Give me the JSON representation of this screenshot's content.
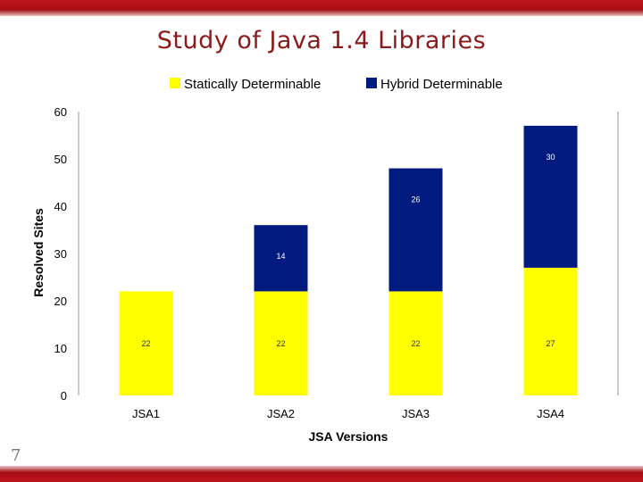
{
  "slide": {
    "title": "Study of Java 1.4 Libraries",
    "number": "7"
  },
  "colors": {
    "statically": "#ffff00",
    "hybrid": "#001a80",
    "brand_bar": "#b0101a",
    "title": "#8b1a1a"
  },
  "chart_data": {
    "type": "bar",
    "stacked": true,
    "title": "",
    "xlabel": "JSA Versions",
    "ylabel": "Resolved Sites",
    "categories": [
      "JSA1",
      "JSA2",
      "JSA3",
      "JSA4"
    ],
    "series": [
      {
        "name": "Statically Determinable",
        "values": [
          22,
          22,
          22,
          27
        ],
        "labels": [
          "22",
          "22",
          "22",
          "27"
        ]
      },
      {
        "name": "Hybrid Determinable",
        "values": [
          0,
          14,
          26,
          30
        ],
        "labels": [
          "",
          "14",
          "26",
          "30"
        ]
      }
    ],
    "ylim": [
      0,
      60
    ],
    "yticks": [
      "0",
      "10",
      "20",
      "30",
      "40",
      "50",
      "60"
    ],
    "legend": "top",
    "grid": false
  }
}
